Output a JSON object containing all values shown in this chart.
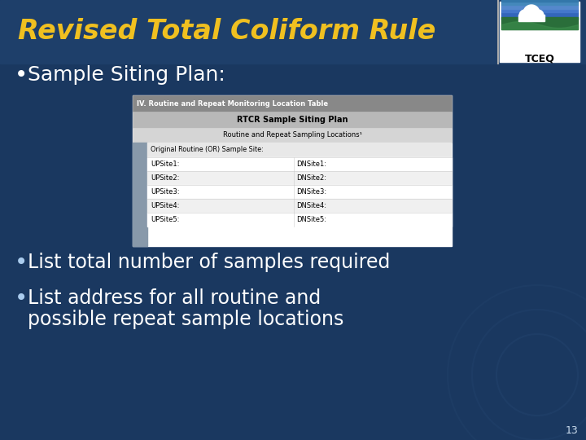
{
  "title": "Revised Total Coliform Rule",
  "title_color": "#F0C020",
  "bg_color": "#1a3860",
  "bg_color_top": "#1e3f6a",
  "text_color": "#ffffff",
  "bullet1": "Sample Siting Plan:",
  "bullet2": "List total number of samples required",
  "bullet3a": "List address for all routine and",
  "bullet3b": "possible repeat sample locations",
  "slide_number": "13",
  "table_header1": "IV. Routine and Repeat Monitoring Location Table",
  "table_header2": "RTCR Sample Siting Plan",
  "table_header3": "Routine and Repeat Sampling Locations¹",
  "table_row0": "Original Routine (OR) Sample Site:",
  "table_left": [
    "UPSite1:",
    "UPSite2:",
    "UPSite3:",
    "UPSite4:",
    "UPSite5:"
  ],
  "table_right": [
    "DNSite1:",
    "DNSite2:",
    "DNSite3:",
    "DNSite4:",
    "DNSite5:"
  ],
  "header1_bg": "#808080",
  "header2_bg": "#b0b0b0",
  "header3_bg": "#d0d0d0",
  "table_white": "#ffffff",
  "table_light": "#f0f0f0",
  "circle_color": "#3a6090",
  "sep_line_color": "#aaaaaa",
  "logo_blue_top": "#4466aa",
  "logo_blue_mid": "#3388cc",
  "logo_green": "#2a6e3a",
  "logo_text_color": "#000000"
}
